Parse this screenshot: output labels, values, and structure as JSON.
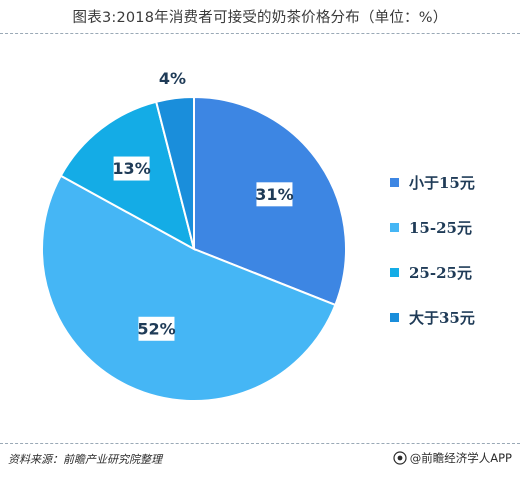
{
  "title": "图表3:2018年消费者可接受的奶茶价格分布（单位：%）",
  "source": "资料来源：前瞻产业研究院整理",
  "credit": "@前瞻经济学人APP",
  "chart_data": {
    "type": "pie",
    "title": "图表3:2018年消费者可接受的奶茶价格分布（单位：%）",
    "unit": "%",
    "categories": [
      "小于15元",
      "15-25元",
      "25-25元",
      "大于35元"
    ],
    "values": [
      31,
      52,
      13,
      4
    ],
    "labels": [
      "31%",
      "52%",
      "13%",
      "4%"
    ],
    "colors": [
      "#3d86e3",
      "#45b6f5",
      "#14ace6",
      "#1a8edb"
    ],
    "legend_position": "right"
  }
}
